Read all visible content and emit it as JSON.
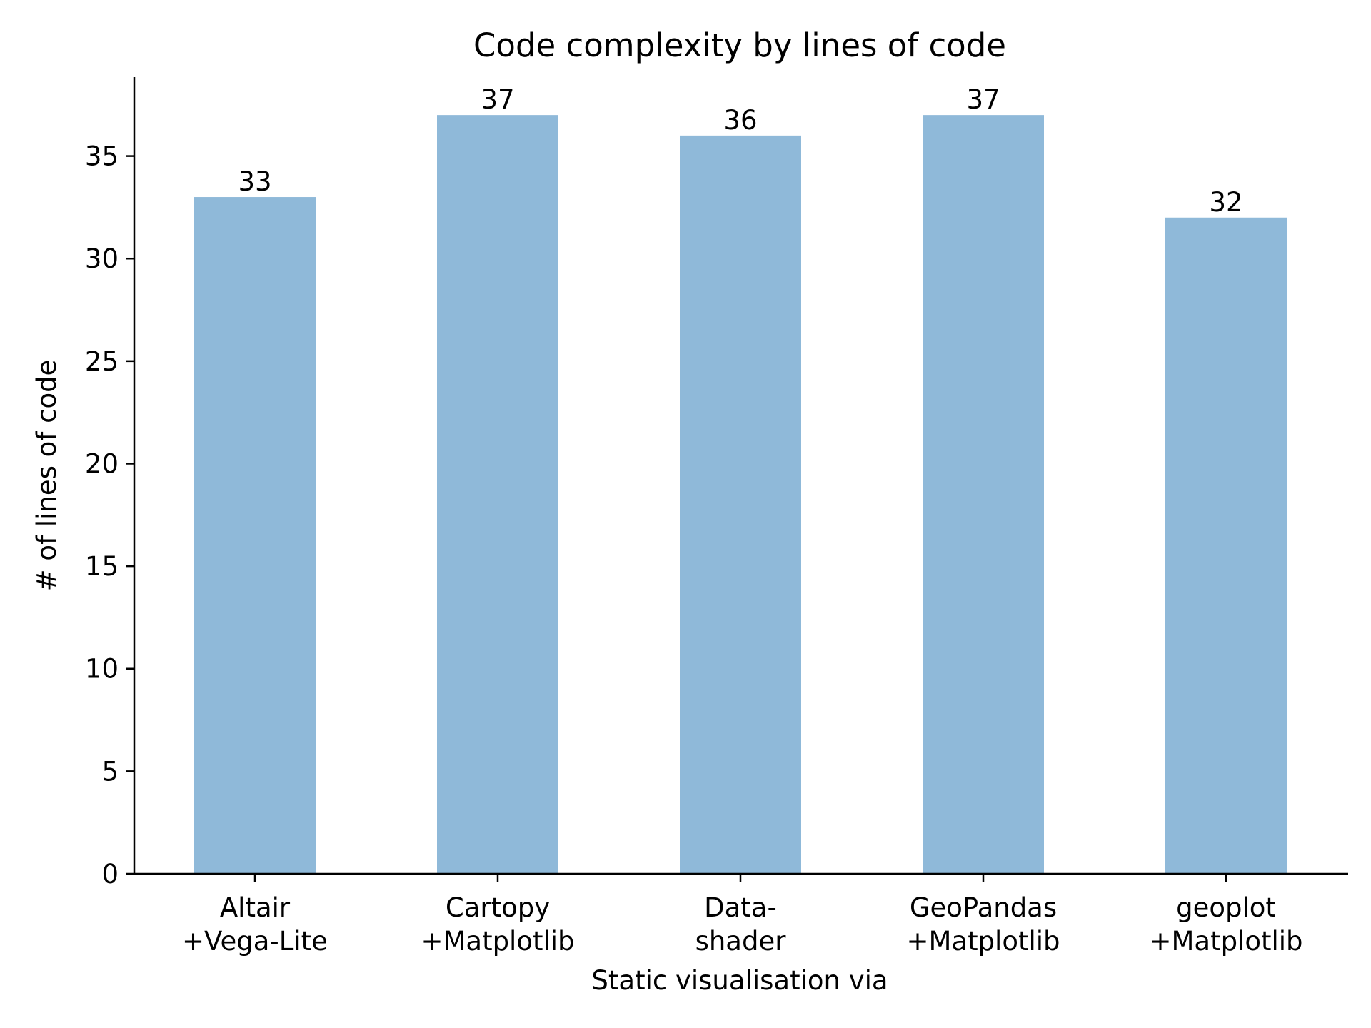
{
  "chart_data": {
    "type": "bar",
    "title": "Code complexity by lines of code",
    "xlabel": "Static visualisation via",
    "ylabel": "# of lines of code",
    "categories": [
      [
        "Altair",
        "+Vega-Lite"
      ],
      [
        "Cartopy",
        "+Matplotlib"
      ],
      [
        "Data-",
        "shader"
      ],
      [
        "GeoPandas",
        "+Matplotlib"
      ],
      [
        "geoplot",
        "+Matplotlib"
      ]
    ],
    "values": [
      33,
      37,
      36,
      37,
      32
    ],
    "data_labels": [
      "33",
      "37",
      "36",
      "37",
      "32"
    ],
    "ylim": [
      0,
      38.85
    ],
    "yticks": [
      0,
      5,
      10,
      15,
      20,
      25,
      30,
      35
    ],
    "ytick_labels": [
      "0",
      "5",
      "10",
      "15",
      "20",
      "25",
      "30",
      "35"
    ],
    "grid": false,
    "legend": "none",
    "bar_color": "#8fb9d9",
    "axis_color": "#000000"
  }
}
